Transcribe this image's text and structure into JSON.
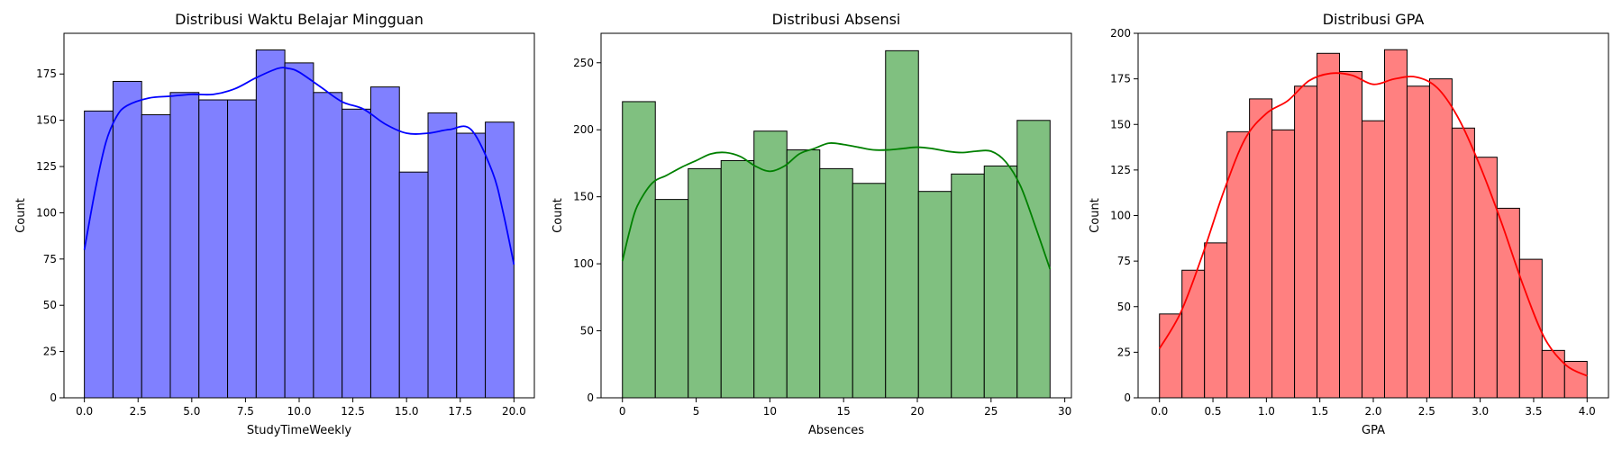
{
  "chart_data": [
    {
      "type": "bar",
      "title": "Distribusi Waktu Belajar Mingguan",
      "xlabel": "StudyTimeWeekly",
      "ylabel": "Count",
      "color": "#0000ff",
      "fill_color": "#8080ff",
      "xlim": [
        -0.95,
        20.95
      ],
      "ylim": [
        0,
        197
      ],
      "xticks": [
        0.0,
        2.5,
        5.0,
        7.5,
        10.0,
        12.5,
        15.0,
        17.5,
        20.0
      ],
      "xtick_labels": [
        "0.0",
        "2.5",
        "5.0",
        "7.5",
        "10.0",
        "12.5",
        "15.0",
        "17.5",
        "20.0"
      ],
      "yticks": [
        0,
        25,
        50,
        75,
        100,
        125,
        150,
        175
      ],
      "ytick_labels": [
        "0",
        "25",
        "50",
        "75",
        "100",
        "125",
        "150",
        "175"
      ],
      "bin_edges": [
        0,
        1.333,
        2.667,
        4.0,
        5.333,
        6.667,
        8.0,
        9.333,
        10.667,
        12.0,
        13.333,
        14.667,
        16.0,
        17.333,
        18.667,
        20.0
      ],
      "values": [
        155,
        171,
        153,
        165,
        161,
        161,
        188,
        181,
        165,
        156,
        168,
        122,
        154,
        143,
        149
      ],
      "kde": {
        "x": [
          0,
          0.5,
          1,
          1.5,
          2,
          3,
          4,
          5,
          6,
          7,
          8,
          9,
          9.5,
          10,
          11,
          12,
          13,
          14,
          15,
          16,
          17,
          18,
          19,
          19.5,
          20
        ],
        "y": [
          80,
          112,
          138,
          152,
          158,
          162,
          163,
          164,
          164,
          167,
          173,
          178,
          178,
          176,
          168,
          160,
          156,
          148,
          143,
          143,
          145,
          145,
          122,
          100,
          72
        ]
      },
      "grid": false,
      "legend": "none"
    },
    {
      "type": "bar",
      "title": "Distribusi Absensi",
      "xlabel": "Absences",
      "ylabel": "Count",
      "color": "#008000",
      "fill_color": "#80c080",
      "xlim": [
        -1.45,
        30.45
      ],
      "ylim": [
        0,
        272
      ],
      "xticks": [
        0,
        5,
        10,
        15,
        20,
        25,
        30
      ],
      "xtick_labels": [
        "0",
        "5",
        "10",
        "15",
        "20",
        "25",
        "30"
      ],
      "yticks": [
        0,
        50,
        100,
        150,
        200,
        250
      ],
      "ytick_labels": [
        "0",
        "50",
        "100",
        "150",
        "200",
        "250"
      ],
      "bin_edges": [
        0,
        2.231,
        4.462,
        6.692,
        8.923,
        11.154,
        13.385,
        15.615,
        17.846,
        20.077,
        22.308,
        24.538,
        26.769,
        29.0
      ],
      "values": [
        221,
        148,
        171,
        177,
        199,
        185,
        171,
        160,
        259,
        154,
        167,
        173,
        207
      ],
      "kde": {
        "x": [
          0,
          0.5,
          1,
          2,
          3,
          4,
          5,
          6,
          7,
          8,
          9,
          10,
          11,
          12,
          13,
          14,
          15,
          16,
          17,
          18,
          19,
          20,
          21,
          22,
          23,
          24,
          25,
          26,
          27,
          28,
          29
        ],
        "y": [
          102,
          125,
          143,
          160,
          166,
          172,
          177,
          182,
          183,
          180,
          173,
          169,
          173,
          182,
          186,
          190,
          189,
          187,
          185,
          185,
          186,
          187,
          186,
          184,
          183,
          184,
          184,
          176,
          158,
          128,
          96
        ]
      },
      "grid": false,
      "legend": "none"
    },
    {
      "type": "bar",
      "title": "Distribusi GPA",
      "xlabel": "GPA",
      "ylabel": "Count",
      "color": "#ff0000",
      "fill_color": "#ff8080",
      "xlim": [
        -0.2,
        4.2
      ],
      "ylim": [
        0,
        200
      ],
      "xticks": [
        0.0,
        0.5,
        1.0,
        1.5,
        2.0,
        2.5,
        3.0,
        3.5,
        4.0
      ],
      "xtick_labels": [
        "0.0",
        "0.5",
        "1.0",
        "1.5",
        "2.0",
        "2.5",
        "3.0",
        "3.5",
        "4.0"
      ],
      "yticks": [
        0,
        25,
        50,
        75,
        100,
        125,
        150,
        175,
        200
      ],
      "ytick_labels": [
        "0",
        "25",
        "50",
        "75",
        "100",
        "125",
        "150",
        "175",
        "200"
      ],
      "bin_edges": [
        0,
        0.2105,
        0.4211,
        0.6316,
        0.8421,
        1.0526,
        1.2632,
        1.4737,
        1.6842,
        1.8947,
        2.1053,
        2.3158,
        2.5263,
        2.7368,
        2.9474,
        3.1579,
        3.3684,
        3.5789,
        3.7895,
        4.0
      ],
      "values": [
        46,
        70,
        85,
        146,
        164,
        147,
        171,
        189,
        179,
        152,
        191,
        171,
        175,
        148,
        132,
        104,
        76,
        26,
        20
      ],
      "kde": {
        "x": [
          0,
          0.2,
          0.4,
          0.6,
          0.8,
          1.0,
          1.2,
          1.4,
          1.6,
          1.8,
          2.0,
          2.2,
          2.4,
          2.6,
          2.8,
          3.0,
          3.2,
          3.4,
          3.6,
          3.8,
          4.0
        ],
        "y": [
          27,
          47,
          78,
          113,
          142,
          156,
          163,
          174,
          178,
          177,
          172,
          175,
          176,
          170,
          153,
          127,
          96,
          62,
          33,
          18,
          12
        ]
      },
      "grid": false,
      "legend": "none"
    }
  ]
}
